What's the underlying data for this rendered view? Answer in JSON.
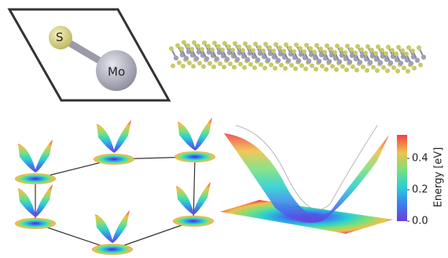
{
  "unit_cell": {
    "atoms": [
      {
        "label": "S"
      },
      {
        "label": "Mo"
      }
    ]
  },
  "colorbar": {
    "label": "Energy [eV]",
    "lim": [
      0,
      0.55
    ],
    "ticks": [
      {
        "value": 0,
        "label": "0.0"
      },
      0.2,
      0.4
    ]
  }
}
